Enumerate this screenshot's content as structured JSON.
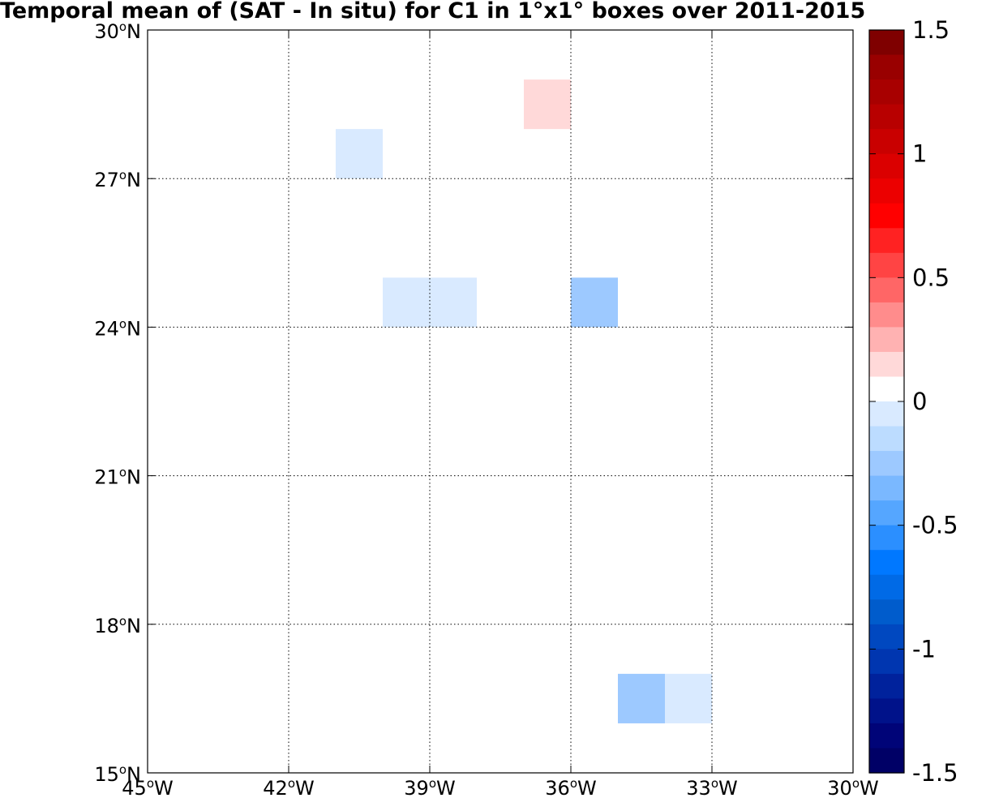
{
  "chart_data": {
    "type": "heatmap",
    "title": "Temporal mean of (SAT - In situ) for C1 in 1°x1° boxes over 2011-2015",
    "map": {
      "lon_range": [
        -45,
        -30
      ],
      "lat_range": [
        15,
        30
      ],
      "grid": true,
      "x_ticks": [
        {
          "value": -45,
          "label": "45",
          "suffix": "W"
        },
        {
          "value": -42,
          "label": "42",
          "suffix": "W"
        },
        {
          "value": -39,
          "label": "39",
          "suffix": "W"
        },
        {
          "value": -36,
          "label": "36",
          "suffix": "W"
        },
        {
          "value": -33,
          "label": "33",
          "suffix": "W"
        },
        {
          "value": -30,
          "label": "30",
          "suffix": "W"
        }
      ],
      "y_ticks": [
        {
          "value": 15,
          "label": "15",
          "suffix": "N"
        },
        {
          "value": 18,
          "label": "18",
          "suffix": "N"
        },
        {
          "value": 21,
          "label": "21",
          "suffix": "N"
        },
        {
          "value": 24,
          "label": "24",
          "suffix": "N"
        },
        {
          "value": 27,
          "label": "27",
          "suffix": "N"
        },
        {
          "value": 30,
          "label": "30",
          "suffix": "N"
        }
      ],
      "degree_symbol": "o",
      "cells": [
        {
          "lon_min": -37,
          "lat_min": 28,
          "value": 0.1
        },
        {
          "lon_min": -41,
          "lat_min": 27,
          "value": -0.1
        },
        {
          "lon_min": -40,
          "lat_min": 24,
          "value": -0.1
        },
        {
          "lon_min": -39,
          "lat_min": 24,
          "value": -0.1
        },
        {
          "lon_min": -36,
          "lat_min": 24,
          "value": -0.3
        },
        {
          "lon_min": -35,
          "lat_min": 16,
          "value": -0.3
        },
        {
          "lon_min": -34,
          "lat_min": 16,
          "value": -0.1
        }
      ]
    },
    "colorbar": {
      "range": [
        -1.5,
        1.5
      ],
      "step": 0.1,
      "ticks": [
        {
          "value": 1.5,
          "label": "1.5"
        },
        {
          "value": 1,
          "label": "1"
        },
        {
          "value": 0.5,
          "label": "0.5"
        },
        {
          "value": 0,
          "label": "0"
        },
        {
          "value": -0.5,
          "label": "-0.5"
        },
        {
          "value": -1,
          "label": "-1"
        },
        {
          "value": -1.5,
          "label": "-1.5"
        }
      ],
      "colors_top_to_bottom": [
        "#7f0000",
        "#990000",
        "#a80000",
        "#b80000",
        "#c90000",
        "#db0000",
        "#ec0000",
        "#ff0000",
        "#ff2222",
        "#ff4444",
        "#ff6666",
        "#ff8c8c",
        "#ffb2b2",
        "#ffd9d9",
        "#ffffff",
        "#d9eaff",
        "#bcdcff",
        "#9dc9ff",
        "#7ab8ff",
        "#55a6ff",
        "#2b8fff",
        "#0078ff",
        "#006ae6",
        "#005ccc",
        "#0048c0",
        "#0036b0",
        "#00229c",
        "#00128a",
        "#000478",
        "#000066"
      ]
    }
  }
}
